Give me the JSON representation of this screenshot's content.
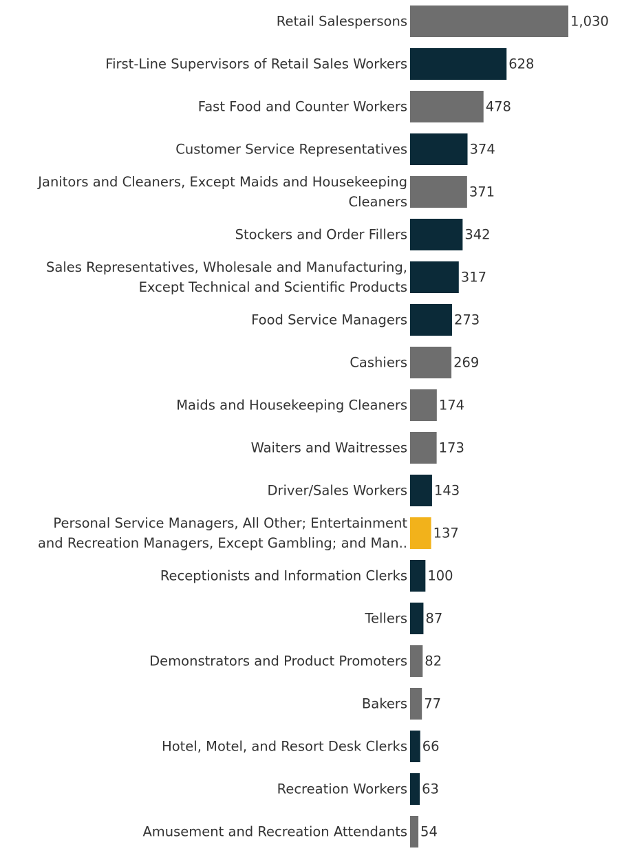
{
  "chart_data": {
    "type": "bar",
    "orientation": "horizontal",
    "title": "",
    "xlabel": "",
    "ylabel": "",
    "grid": false,
    "xlim": [
      0,
      1030
    ],
    "value_display_format": "thousands-comma",
    "colors": {
      "gray": "#6e6e6e",
      "navy": "#0b2a38",
      "gold": "#f2b21b"
    },
    "categories": [
      [
        "Retail Salespersons"
      ],
      [
        "First-Line Supervisors of Retail Sales Workers"
      ],
      [
        "Fast Food and Counter Workers"
      ],
      [
        "Customer Service Representatives"
      ],
      [
        "Janitors and Cleaners, Except Maids and Housekeeping",
        "Cleaners"
      ],
      [
        "Stockers and Order Fillers"
      ],
      [
        "Sales Representatives, Wholesale and Manufacturing,",
        "Except Technical and Scientific Products"
      ],
      [
        "Food Service Managers"
      ],
      [
        "Cashiers"
      ],
      [
        "Maids and Housekeeping Cleaners"
      ],
      [
        "Waiters and Waitresses"
      ],
      [
        "Driver/Sales Workers"
      ],
      [
        "Personal Service Managers, All Other; Entertainment",
        "and Recreation Managers, Except Gambling; and Man.."
      ],
      [
        "Receptionists and Information Clerks"
      ],
      [
        "Tellers"
      ],
      [
        "Demonstrators and Product Promoters"
      ],
      [
        "Bakers"
      ],
      [
        "Hotel, Motel, and Resort Desk Clerks"
      ],
      [
        "Recreation Workers"
      ],
      [
        "Amusement and Recreation Attendants"
      ]
    ],
    "values": [
      1030,
      628,
      478,
      374,
      371,
      342,
      317,
      273,
      269,
      174,
      173,
      143,
      137,
      100,
      87,
      82,
      77,
      66,
      63,
      54
    ],
    "bar_colors": [
      "gray",
      "navy",
      "gray",
      "navy",
      "gray",
      "navy",
      "navy",
      "navy",
      "gray",
      "gray",
      "gray",
      "navy",
      "gold",
      "navy",
      "navy",
      "gray",
      "gray",
      "navy",
      "navy",
      "gray"
    ]
  }
}
